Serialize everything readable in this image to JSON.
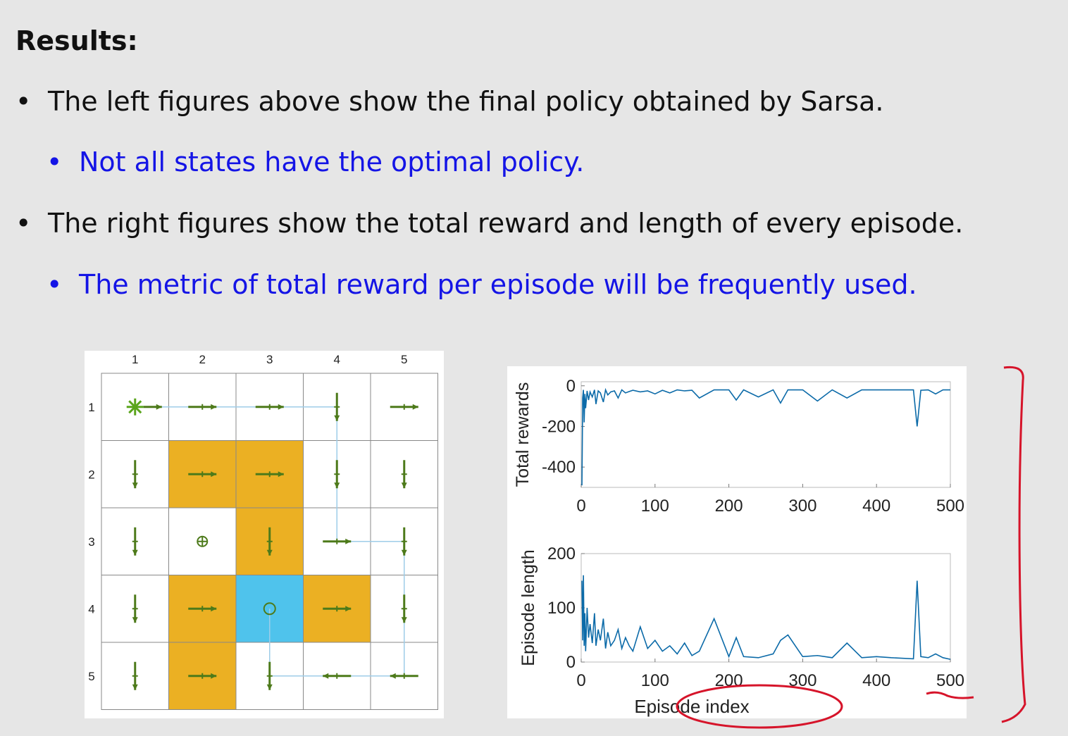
{
  "heading": "Results:",
  "bullets": [
    {
      "text": "The left figures above show the final policy obtained by Sarsa.",
      "color": "#111111"
    },
    {
      "text": "Not all states have the optimal policy.",
      "color": "#1414e6"
    },
    {
      "text": "The right figures show the total reward and length of every episode.",
      "color": "#111111"
    },
    {
      "text": "The metric of total reward per episode will be frequently used.",
      "color": "#1414e6"
    }
  ],
  "bullet_glyph": "•",
  "grid": {
    "col_labels": [
      "1",
      "2",
      "3",
      "4",
      "5"
    ],
    "row_labels": [
      "1",
      "2",
      "3",
      "4",
      "5"
    ],
    "forbidden_color": "#ebb023",
    "target_color": "#4fc3ec",
    "arrow_color": "#4d7a1a",
    "path_color": "#9ecde8",
    "cells": [
      [
        "start",
        "right",
        "right",
        "down",
        "right"
      ],
      [
        "down",
        "forbidden-right",
        "forbidden-right",
        "down",
        "down"
      ],
      [
        "down",
        "stay",
        "forbidden-down",
        "right",
        "down"
      ],
      [
        "down",
        "forbidden-right",
        "target",
        "forbidden-right",
        "down"
      ],
      [
        "down",
        "forbidden-right",
        "down",
        "left",
        "left"
      ]
    ]
  },
  "chart_data": [
    {
      "type": "line",
      "ylabel": "Total rewards",
      "xlabel": "",
      "xlim": [
        0,
        500
      ],
      "ylim": [
        -500,
        20
      ],
      "xticks": [
        "0",
        "100",
        "200",
        "300",
        "400",
        "500"
      ],
      "yticks": [
        "0",
        "-200",
        "-400"
      ],
      "line_color": "#0b6aa8",
      "series": [
        {
          "x": [
            1,
            2,
            3,
            4,
            5,
            6,
            8,
            10,
            12,
            15,
            18,
            20,
            23,
            26,
            30,
            33,
            36,
            40,
            45,
            50,
            55,
            60,
            65,
            70,
            80,
            90,
            100,
            110,
            120,
            130,
            140,
            150,
            160,
            180,
            200,
            210,
            220,
            240,
            260,
            270,
            280,
            300,
            320,
            340,
            360,
            380,
            400,
            420,
            450,
            455,
            460,
            470,
            480,
            490,
            500
          ],
          "y": [
            -490,
            -60,
            -20,
            -180,
            -40,
            -110,
            -25,
            -70,
            -30,
            -55,
            -20,
            -90,
            -25,
            -35,
            -80,
            -20,
            -45,
            -30,
            -25,
            -60,
            -20,
            -35,
            -28,
            -22,
            -30,
            -25,
            -40,
            -22,
            -35,
            -20,
            -25,
            -22,
            -60,
            -20,
            -20,
            -70,
            -20,
            -55,
            -20,
            -85,
            -20,
            -20,
            -75,
            -20,
            -60,
            -20,
            -20,
            -20,
            -20,
            -200,
            -22,
            -20,
            -40,
            -20,
            -20
          ]
        }
      ]
    },
    {
      "type": "line",
      "ylabel": "Episode length",
      "xlabel": "Episode index",
      "xlim": [
        0,
        500
      ],
      "ylim": [
        0,
        200
      ],
      "xticks": [
        "0",
        "100",
        "200",
        "300",
        "400",
        "500"
      ],
      "yticks": [
        "200",
        "100",
        "0"
      ],
      "line_color": "#0b6aa8",
      "series": [
        {
          "x": [
            1,
            2,
            3,
            4,
            5,
            6,
            8,
            10,
            12,
            15,
            18,
            20,
            23,
            26,
            30,
            33,
            36,
            40,
            45,
            50,
            55,
            60,
            65,
            70,
            80,
            90,
            100,
            110,
            120,
            130,
            140,
            150,
            160,
            180,
            200,
            210,
            220,
            240,
            260,
            270,
            280,
            300,
            320,
            340,
            360,
            380,
            400,
            420,
            450,
            455,
            460,
            470,
            480,
            490,
            500
          ],
          "y": [
            150,
            40,
            160,
            30,
            90,
            20,
            100,
            45,
            70,
            35,
            90,
            30,
            60,
            40,
            80,
            25,
            55,
            30,
            40,
            60,
            25,
            45,
            30,
            20,
            65,
            25,
            40,
            20,
            30,
            15,
            35,
            12,
            20,
            80,
            10,
            45,
            10,
            8,
            15,
            40,
            50,
            10,
            12,
            8,
            35,
            8,
            10,
            8,
            6,
            150,
            10,
            8,
            15,
            8,
            5
          ]
        }
      ]
    }
  ]
}
